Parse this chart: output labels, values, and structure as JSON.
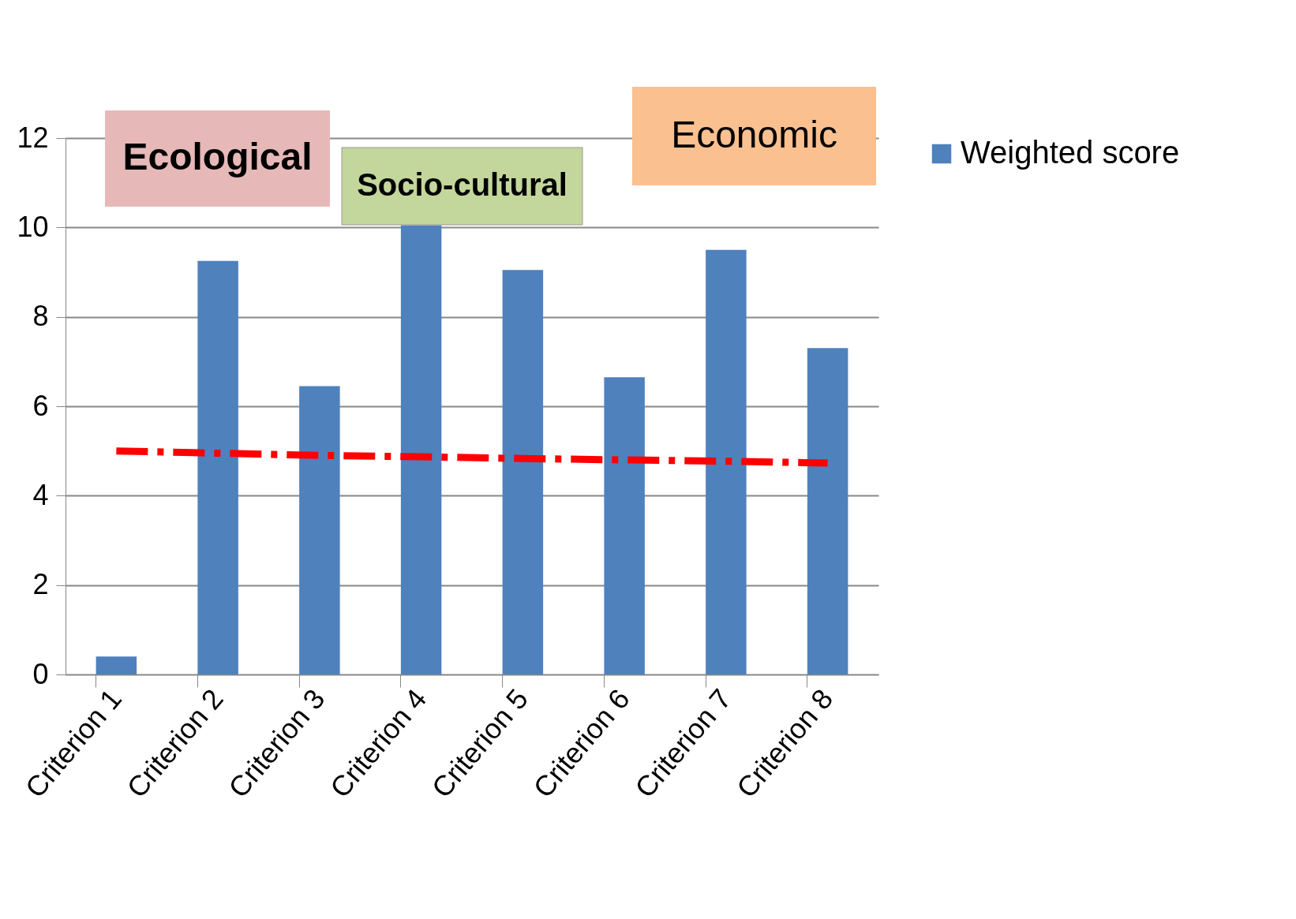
{
  "chart_data": {
    "type": "bar",
    "categories": [
      "Criterion 1",
      "Criterion 2",
      "Criterion 3",
      "Criterion 4",
      "Criterion 5",
      "Criterion 6",
      "Criterion 7",
      "Criterion 8"
    ],
    "series": [
      {
        "name": "Weighted score",
        "color": "#4f81bd",
        "values": [
          0.4,
          9.25,
          6.45,
          10.05,
          9.05,
          6.65,
          9.5,
          7.3
        ]
      },
      {
        "type": "line",
        "color": "#ff0000",
        "line_style": "dashed",
        "values": [
          5.0,
          4.95,
          4.9,
          4.87,
          4.83,
          4.8,
          4.77,
          4.73
        ]
      }
    ],
    "ylim": [
      0,
      12
    ],
    "yticks": [
      0,
      2,
      4,
      6,
      8,
      10,
      12
    ],
    "grid": "y",
    "legend": "right",
    "annotations": [
      "Ecological",
      "Socio-cultural",
      "Economic"
    ]
  }
}
